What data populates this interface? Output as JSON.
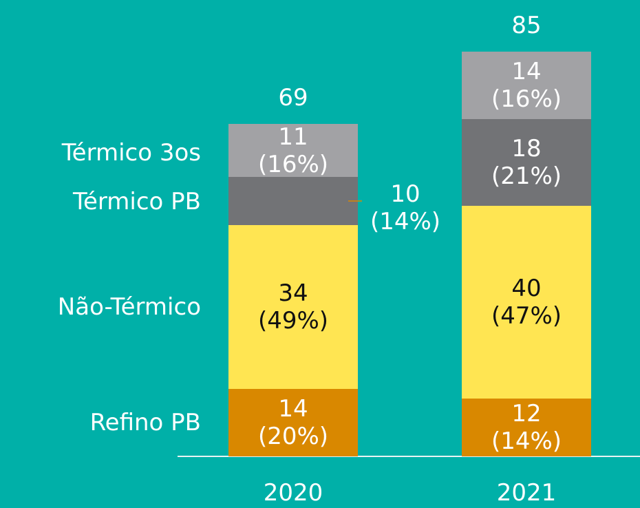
{
  "chart_data": {
    "type": "stacked_bar",
    "categories": [
      "2020",
      "2021"
    ],
    "series": [
      {
        "name": "Refino PB",
        "color": "#d98800",
        "values": [
          14,
          12
        ],
        "value_labels": [
          "14 (20%)",
          "12 (14%)"
        ]
      },
      {
        "name": "Não-Térmico",
        "color": "#ffe552",
        "values": [
          34,
          40
        ],
        "value_labels": [
          "34 (49%)",
          "40 (47%)"
        ]
      },
      {
        "name": "Térmico PB",
        "color": "#727376",
        "values": [
          10,
          18
        ],
        "value_labels": [
          "10 (14%)",
          "18 (21%)"
        ]
      },
      {
        "name": "Térmico 3os",
        "color": "#a2a2a5",
        "values": [
          11,
          14
        ],
        "value_labels": [
          "11 (16%)",
          "14 (16%)"
        ]
      }
    ],
    "totals": [
      69,
      85
    ],
    "ylim": [
      0,
      85
    ]
  }
}
